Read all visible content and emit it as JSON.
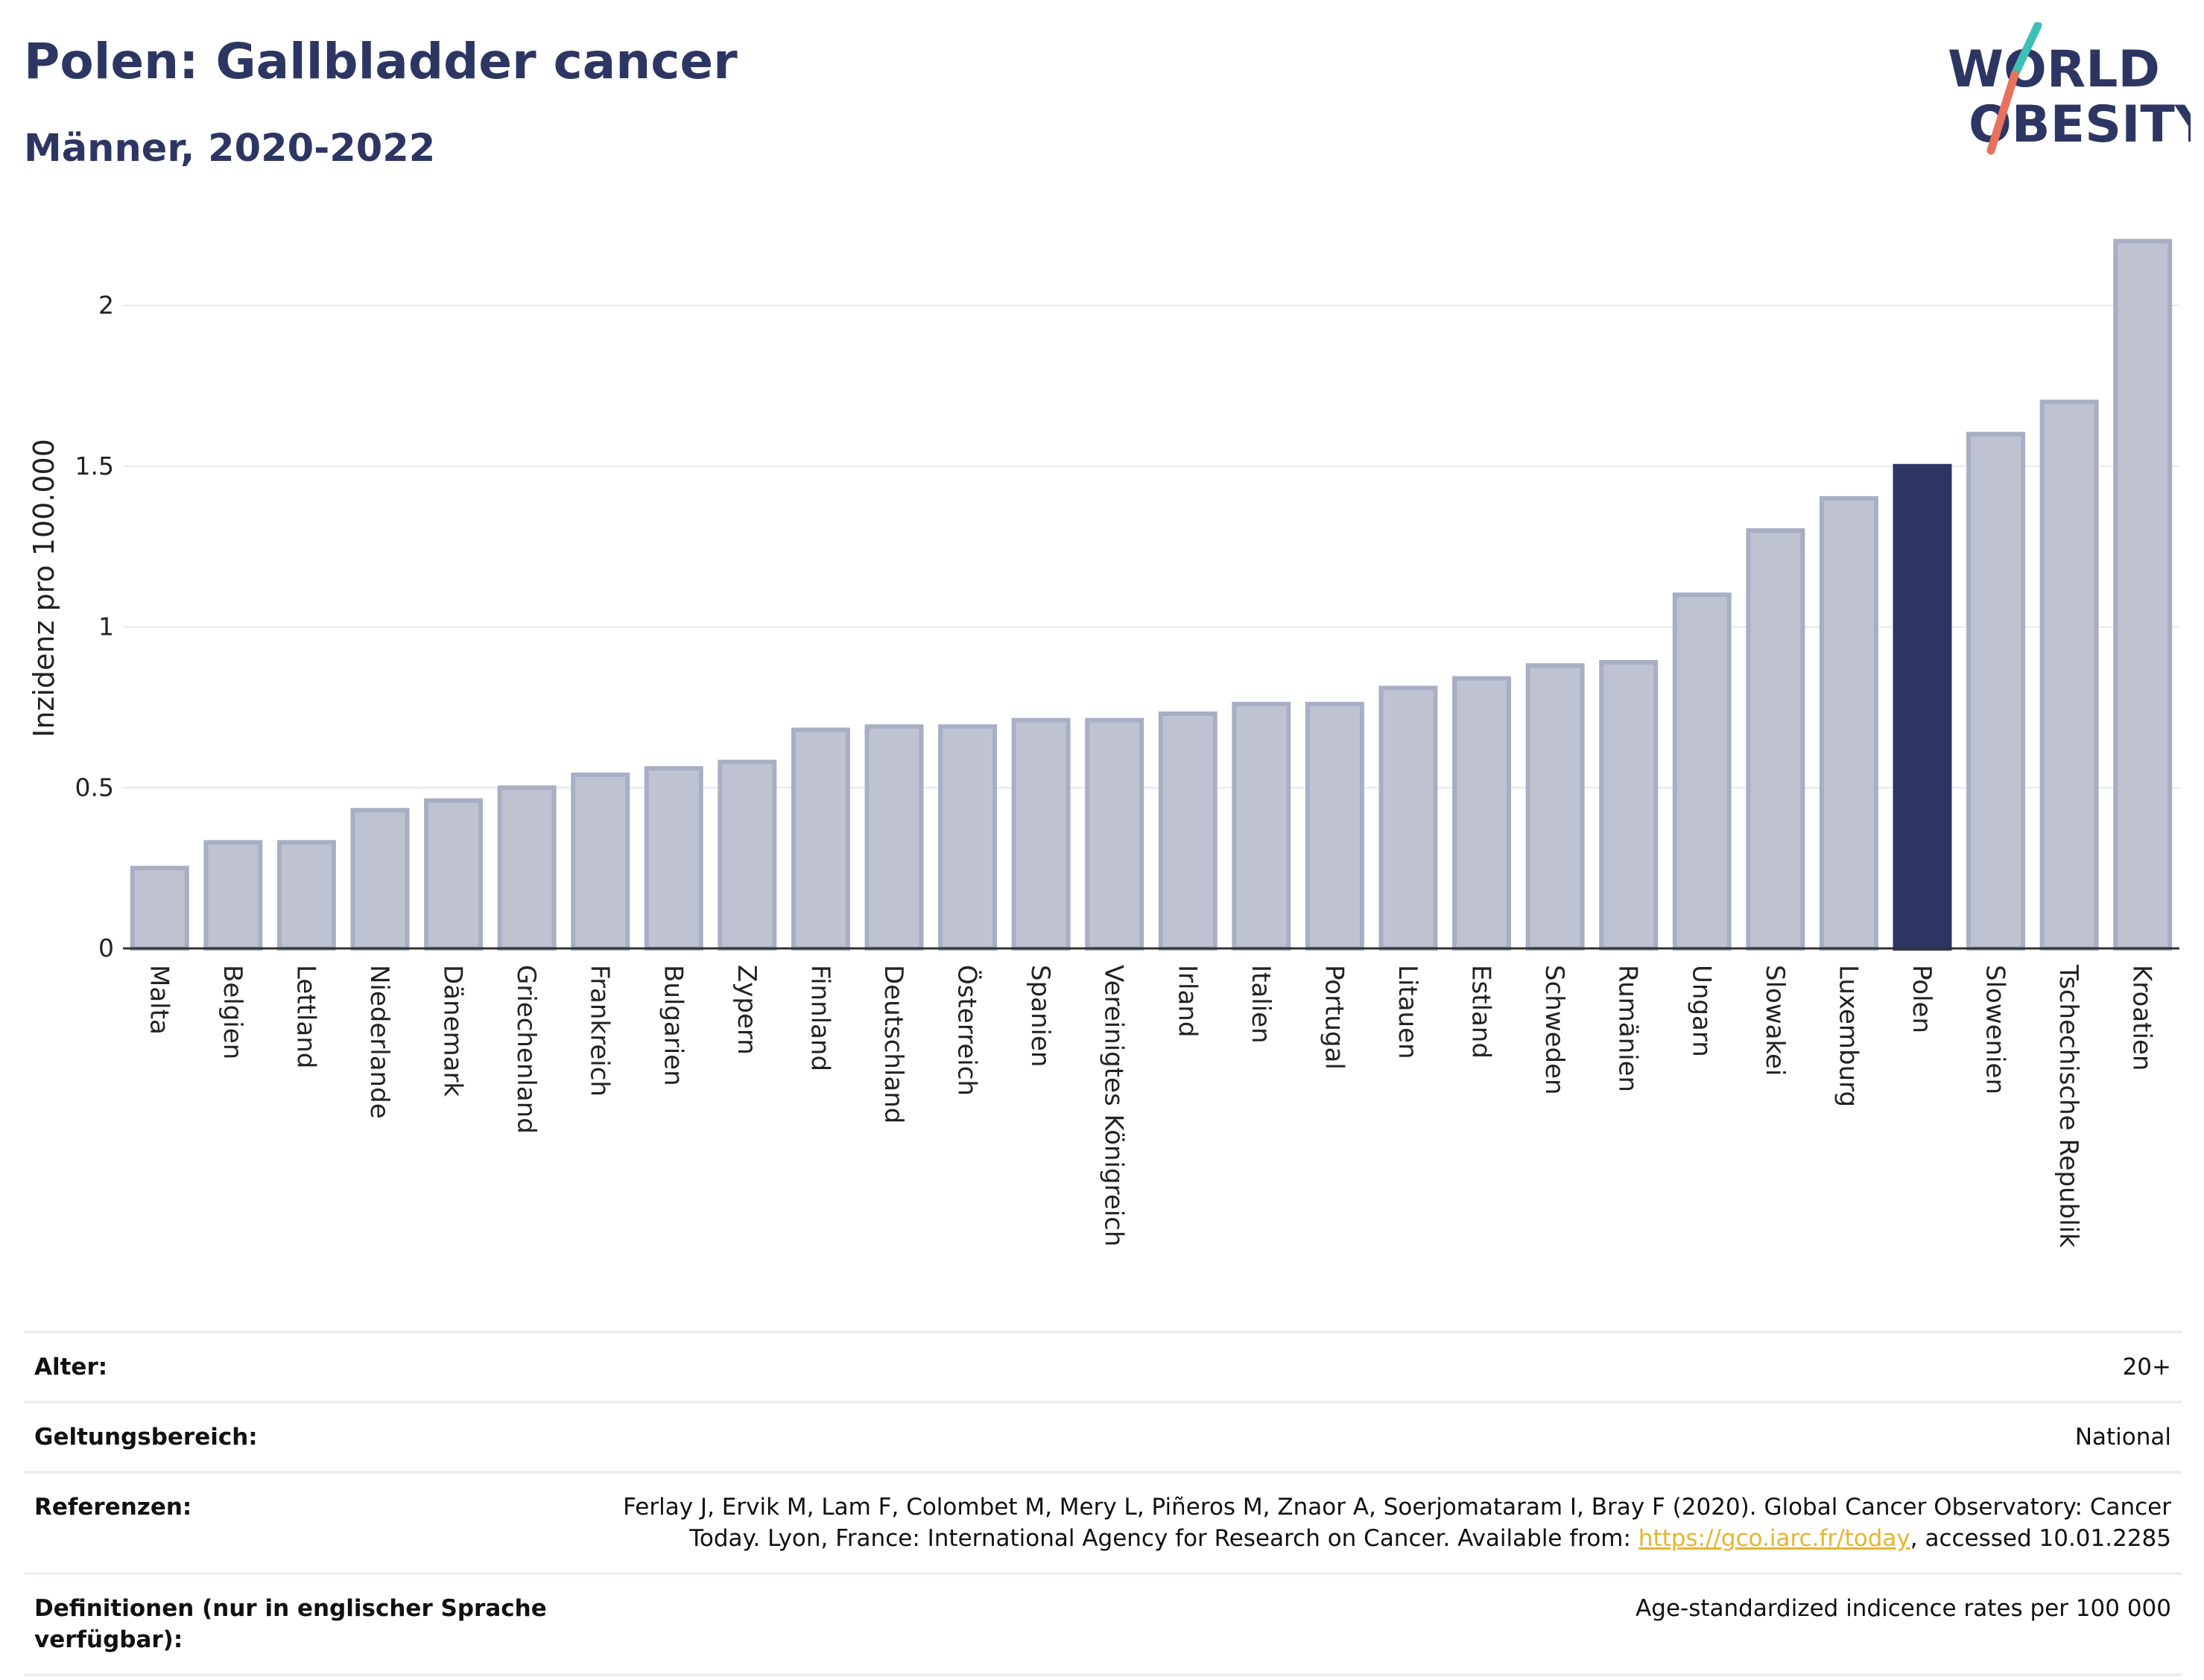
{
  "header": {
    "title": "Polen: Gallbladder cancer",
    "subtitle": "Männer, 2020-2022"
  },
  "logo": {
    "line1": "WORLD",
    "line2": "OBESITY",
    "slash_colors": [
      "#3dbfb5",
      "#e8725b"
    ]
  },
  "colors": {
    "bar_default": "#bfc3d1",
    "bar_border": "#a8aec3",
    "bar_highlight": "#2d3663",
    "text": "#2d3663",
    "link": "#e5b52f"
  },
  "chart_data": {
    "type": "bar",
    "ylabel": "Inzidenz pro 100.000",
    "ylim": [
      0,
      2.25
    ],
    "yticks": [
      0,
      0.5,
      1,
      1.5,
      2
    ],
    "highlight": "Polen",
    "categories": [
      "Malta",
      "Belgien",
      "Lettland",
      "Niederlande",
      "Dänemark",
      "Griechenland",
      "Frankreich",
      "Bulgarien",
      "Zypern",
      "Finnland",
      "Deutschland",
      "Österreich",
      "Spanien",
      "Vereinigtes Königreich",
      "Irland",
      "Italien",
      "Portugal",
      "Litauen",
      "Estland",
      "Schweden",
      "Rumänien",
      "Ungarn",
      "Slowakei",
      "Luxemburg",
      "Polen",
      "Slowenien",
      "Tschechische Republik",
      "Kroatien"
    ],
    "values": [
      0.25,
      0.33,
      0.33,
      0.43,
      0.46,
      0.5,
      0.54,
      0.56,
      0.58,
      0.68,
      0.69,
      0.69,
      0.71,
      0.71,
      0.73,
      0.76,
      0.76,
      0.81,
      0.84,
      0.88,
      0.89,
      1.1,
      1.3,
      1.4,
      1.5,
      1.6,
      1.7,
      2.2
    ]
  },
  "meta": {
    "age_label": "Alter:",
    "age_value": "20+",
    "scope_label": "Geltungsbereich:",
    "scope_value": "National",
    "refs_label": "Referenzen:",
    "refs_text_1": "Ferlay J, Ervik M, Lam F, Colombet M, Mery L, Piñeros M, Znaor A, Soerjomataram I, Bray F (2020). Global Cancer Observatory: Cancer Today. Lyon, France: International Agency for Research on Cancer. Available from: ",
    "refs_link": "https://gco.iarc.fr/today",
    "refs_text_2": ", accessed 10.01.2285",
    "defs_label": "Definitionen (nur in englischer Sprache verfügbar):",
    "defs_value": "Age-standardized indicence rates per 100 000"
  }
}
